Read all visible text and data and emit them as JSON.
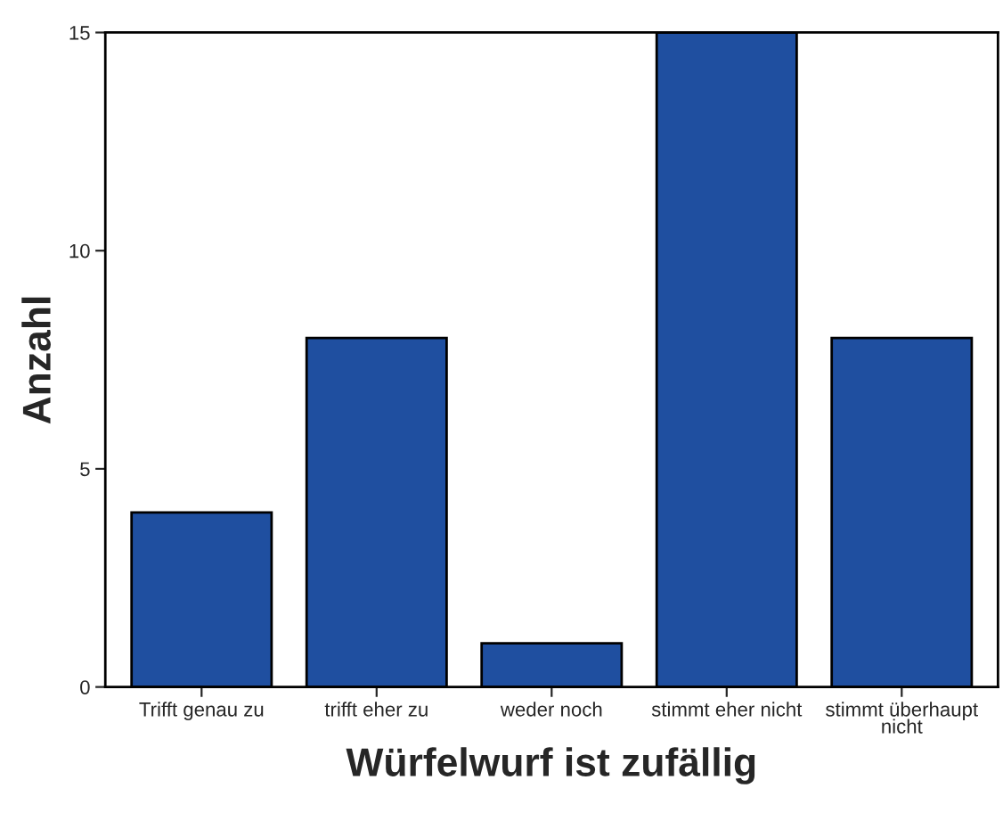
{
  "chart_data": {
    "type": "bar",
    "xlabel": "Würfelwurf ist zufällig",
    "ylabel": "Anzahl",
    "categories": [
      "Trifft genau zu",
      "trifft eher zu",
      "weder noch",
      "stimmt eher nicht",
      "stimmt überhaupt nicht"
    ],
    "values": [
      4,
      8,
      1,
      15,
      8
    ],
    "color": "#1f4fa0",
    "ylim": [
      0,
      15
    ],
    "yticks": [
      0,
      5,
      10,
      15
    ],
    "grid": false,
    "legend": false
  }
}
